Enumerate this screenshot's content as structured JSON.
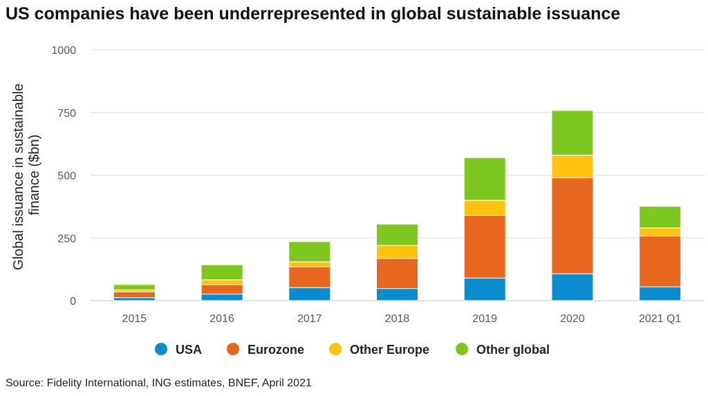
{
  "title": "US companies have been underrepresented in global sustainable issuance",
  "source": "Source: Fidelity International, ING estimates, BNEF, April 2021",
  "chart_data": {
    "type": "bar",
    "stacked": true,
    "ylabel": [
      "Global issuance in sustainable",
      "finance ($bn)"
    ],
    "ylim": [
      0,
      1000
    ],
    "yticks": [
      0,
      250,
      500,
      750,
      1000
    ],
    "grid": true,
    "legend_position": "bottom",
    "categories": [
      "2015",
      "2016",
      "2017",
      "2018",
      "2019",
      "2020",
      "2021 Q1"
    ],
    "series": [
      {
        "name": "USA",
        "color": "#0a8ccf",
        "values": [
          12,
          26,
          52,
          48,
          90,
          107,
          55
        ]
      },
      {
        "name": "Eurozone",
        "color": "#e8671e",
        "values": [
          23,
          38,
          83,
          120,
          250,
          383,
          203
        ]
      },
      {
        "name": "Other Europe",
        "color": "#ffc20e",
        "values": [
          8,
          19,
          20,
          52,
          60,
          90,
          32
        ]
      },
      {
        "name": "Other global",
        "color": "#7ec71f",
        "values": [
          21,
          60,
          80,
          85,
          170,
          178,
          86
        ]
      }
    ]
  }
}
